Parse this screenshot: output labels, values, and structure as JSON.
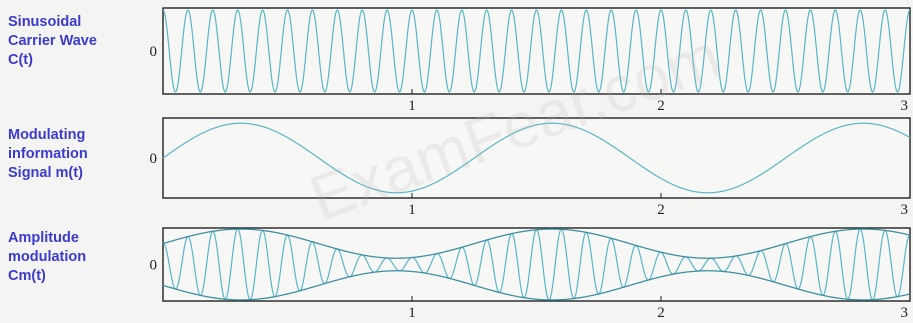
{
  "panels": [
    {
      "label_lines": [
        "Sinusoidal",
        "Carrier Wave",
        "C(t)"
      ],
      "zero_label": "0"
    },
    {
      "label_lines": [
        "Modulating",
        "information",
        "Signal m(t)"
      ],
      "zero_label": "0"
    },
    {
      "label_lines": [
        "Amplitude",
        "modulation",
        "Cm(t)"
      ],
      "zero_label": "0"
    }
  ],
  "watermark": "ExamFear.com",
  "chart_data": [
    {
      "type": "line",
      "series": [
        {
          "name": "",
          "function": "cos(2*pi*fc*t)",
          "carrier_cycles_per_unit": 10
        }
      ],
      "x_ticks": [
        "1",
        "2",
        "3"
      ],
      "xlim": [
        0,
        3
      ],
      "ylim": [
        -1.05,
        1.05
      ],
      "line_color": "#59b6c8",
      "grid": false
    },
    {
      "type": "line",
      "series": [
        {
          "name": "",
          "function": "sin(2*pi*fm*t)",
          "cycles_per_unit": 0.8
        }
      ],
      "x_ticks": [
        "1",
        "2",
        "3"
      ],
      "xlim": [
        0,
        3
      ],
      "ylim": [
        -1.15,
        1.15
      ],
      "line_color": "#59b6c8",
      "grid": false
    },
    {
      "type": "line",
      "series": [
        {
          "name": "",
          "function": "(1+0.7*sin(2*pi*fm*t))*cos(2*pi*fc*t)",
          "modulation_index": 0.7,
          "envelope_shown": true
        }
      ],
      "x_ticks": [
        "1",
        "2",
        "3"
      ],
      "xlim": [
        0,
        3
      ],
      "ylim": [
        -1.75,
        1.75
      ],
      "line_color": "#59b6c8",
      "grid": false
    }
  ]
}
